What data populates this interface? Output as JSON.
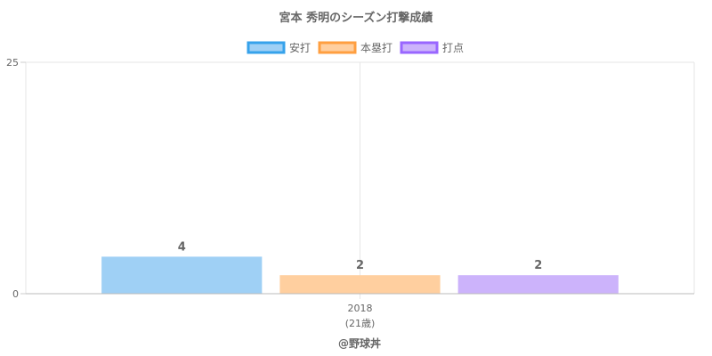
{
  "chart_data": {
    "type": "bar",
    "title": "宮本 秀明のシーズン打撃成績",
    "categories": [
      "2018"
    ],
    "category_sublabels": [
      "(21歳)"
    ],
    "series": [
      {
        "name": "安打",
        "values": [
          4
        ],
        "color": "#9fd0f5",
        "border": "#36a2eb"
      },
      {
        "name": "本塁打",
        "values": [
          2
        ],
        "color": "#ffcf9f",
        "border": "#ff9f40"
      },
      {
        "name": "打点",
        "values": [
          2
        ],
        "color": "#ccb3fb",
        "border": "#9966ff"
      }
    ],
    "ylim": [
      0,
      25
    ],
    "y_ticks": [
      "0",
      "25"
    ],
    "legend": "top",
    "grid": true
  },
  "credit": "@野球丼"
}
